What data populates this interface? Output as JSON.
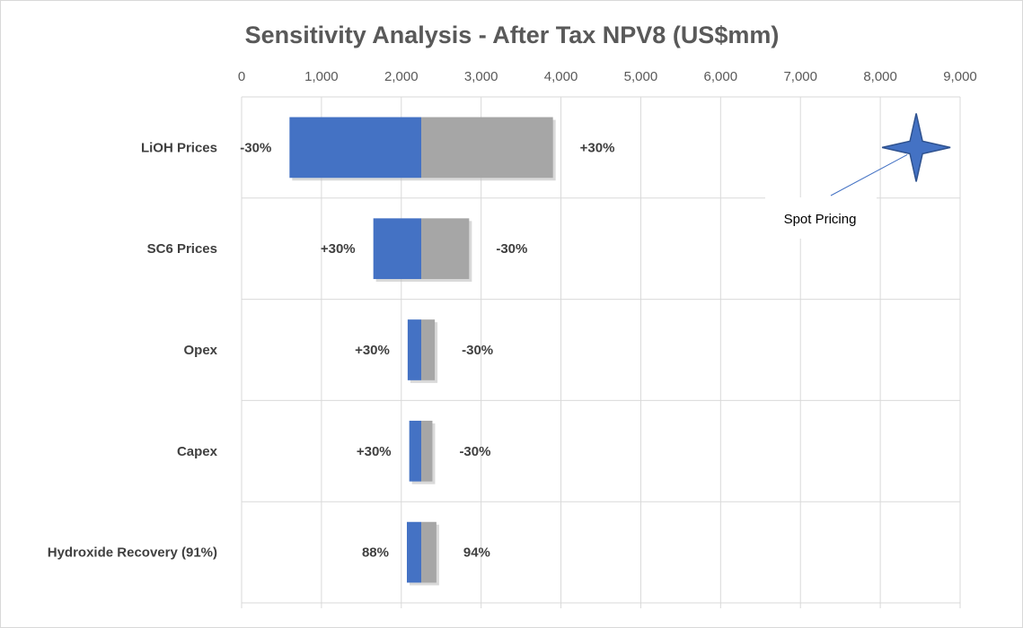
{
  "chart_data": {
    "type": "bar",
    "orientation": "horizontal",
    "style": "tornado",
    "title": "Sensitivity Analysis - After Tax NPV8 (US$mm)",
    "base_value": 2250,
    "xlim": [
      0,
      9000
    ],
    "x_ticks": [
      0,
      1000,
      2000,
      3000,
      4000,
      5000,
      6000,
      7000,
      8000,
      9000
    ],
    "x_tick_labels": [
      "0",
      "1,000",
      "2,000",
      "3,000",
      "4,000",
      "5,000",
      "6,000",
      "7,000",
      "8,000",
      "9,000"
    ],
    "x_axis_position": "top",
    "grid": true,
    "categories": [
      "LiOH Prices",
      "SC6 Prices",
      "Opex",
      "Capex",
      "Hydroxide Recovery (91%)"
    ],
    "series": [
      {
        "color": "#4472c4",
        "values": [
          600,
          1650,
          2080,
          2100,
          2070
        ]
      },
      {
        "color": "#a6a6a6",
        "values": [
          3900,
          2850,
          2420,
          2390,
          2440
        ]
      }
    ],
    "low_labels": [
      "-30%",
      "+30%",
      "+30%",
      "+30%",
      "88%"
    ],
    "high_labels": [
      "+30%",
      "-30%",
      "-30%",
      "-30%",
      "94%"
    ],
    "marker": {
      "shape": "four-point-star",
      "color": "#4472c4",
      "x_value": 8450,
      "category": "LiOH Prices",
      "annotation": "Spot Pricing"
    }
  }
}
